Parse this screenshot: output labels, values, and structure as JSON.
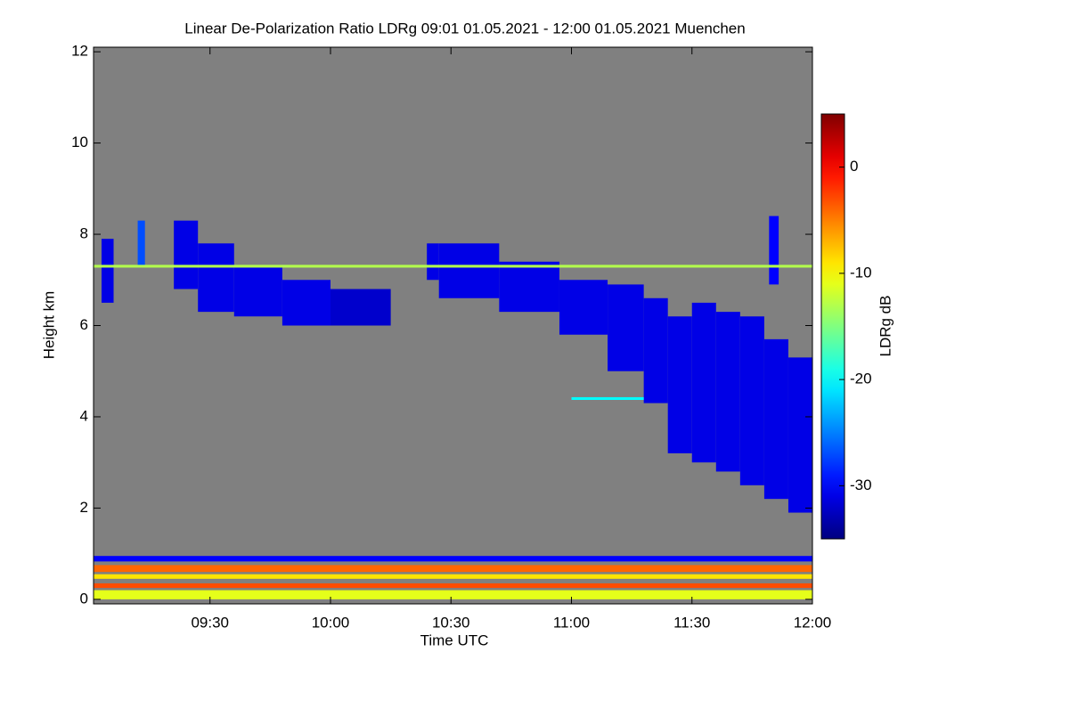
{
  "chart_data": {
    "type": "heatmap",
    "title": "Linear De-Polarization Ratio LDRg   09:01 01.05.2021 - 12:00 01.05.2021 Muenchen",
    "xlabel": "Time UTC",
    "ylabel": "Height km",
    "colorbar_label": "LDRg dB",
    "background": "#808080",
    "colormap": "jet",
    "xlim": [
      9.0167,
      12
    ],
    "ylim": [
      -0.1,
      12.1
    ],
    "clim": [
      -35,
      5
    ],
    "xticks": [
      {
        "value": 9.5,
        "label": "09:30"
      },
      {
        "value": 10,
        "label": "10:00"
      },
      {
        "value": 10.5,
        "label": "10:30"
      },
      {
        "value": 11,
        "label": "11:00"
      },
      {
        "value": 11.5,
        "label": "11:30"
      },
      {
        "value": 12,
        "label": "12:00"
      }
    ],
    "yticks": [
      0,
      2,
      4,
      6,
      8,
      10,
      12
    ],
    "cticks": [
      -30,
      -20,
      -10,
      0
    ],
    "cells": [
      [
        9.05,
        9.1,
        6.5,
        7.9,
        -31
      ],
      [
        9.2,
        9.23,
        7.3,
        8.3,
        -27
      ],
      [
        9.35,
        9.45,
        6.8,
        8.3,
        -31
      ],
      [
        9.45,
        9.6,
        6.3,
        7.8,
        -31
      ],
      [
        9.6,
        9.8,
        6.2,
        7.3,
        -31
      ],
      [
        9.8,
        10.0,
        6.0,
        7.0,
        -31
      ],
      [
        10.0,
        10.25,
        6.0,
        6.8,
        -32
      ],
      [
        10.4,
        10.45,
        7.0,
        7.8,
        -31
      ],
      [
        10.45,
        10.7,
        6.6,
        7.8,
        -31
      ],
      [
        10.7,
        10.95,
        6.3,
        7.4,
        -31
      ],
      [
        10.95,
        11.15,
        5.8,
        7.0,
        -31
      ],
      [
        11.15,
        11.3,
        5.0,
        6.9,
        -31
      ],
      [
        11.3,
        11.4,
        4.3,
        6.6,
        -31
      ],
      [
        11.4,
        11.5,
        3.2,
        6.2,
        -31
      ],
      [
        11.5,
        11.6,
        3.0,
        6.5,
        -31
      ],
      [
        11.6,
        11.7,
        2.8,
        6.3,
        -31
      ],
      [
        11.7,
        11.8,
        2.5,
        6.2,
        -31
      ],
      [
        11.8,
        11.9,
        2.2,
        5.7,
        -31
      ],
      [
        11.9,
        12.0,
        1.9,
        5.3,
        -31
      ],
      [
        11.82,
        11.86,
        6.9,
        8.4,
        -30
      ],
      [
        9.0167,
        12,
        7.27,
        7.33,
        -13
      ],
      [
        11.0,
        11.3,
        4.37,
        4.43,
        -20
      ],
      [
        9.0167,
        12,
        0.83,
        0.95,
        -30
      ],
      [
        9.0167,
        12,
        0.6,
        0.75,
        -4
      ],
      [
        9.0167,
        12,
        0.45,
        0.55,
        -9
      ],
      [
        9.0167,
        12,
        0.25,
        0.35,
        -3
      ],
      [
        9.0167,
        12,
        0.0,
        0.2,
        -11
      ]
    ]
  }
}
